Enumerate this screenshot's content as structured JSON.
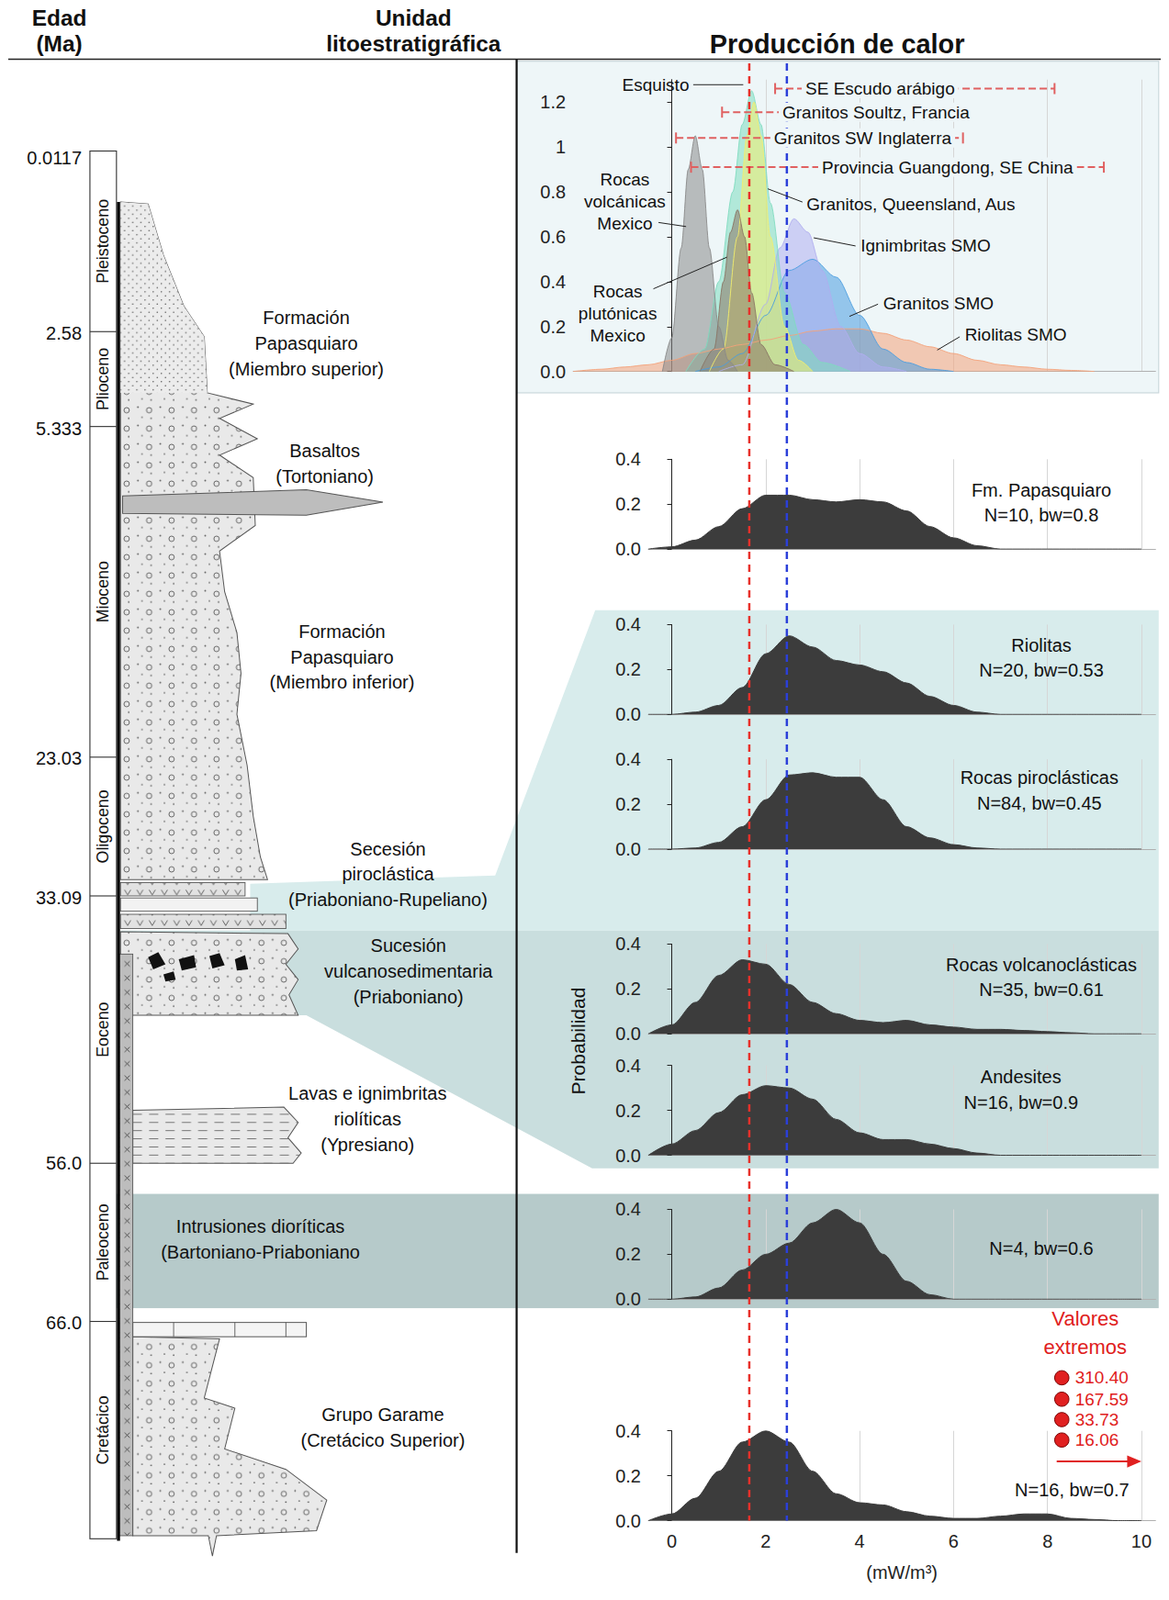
{
  "header": {
    "age_title": [
      "Edad",
      "(Ma)"
    ],
    "unit_title": [
      "Unidad",
      "litoestratigráfica"
    ],
    "heat_title": "Producción de calor"
  },
  "stratigraphy": {
    "ages": [
      0.0117,
      2.58,
      5.333,
      23.03,
      33.09,
      {
        "value": 56.0,
        "label": "56.0"
      },
      {
        "value": 66.0,
        "label": "66.0"
      }
    ],
    "epochs": [
      "Pleistoceno",
      "Plioceno",
      "Mioceno",
      "Oligoceno",
      "Eoceno",
      "Paleoceno",
      "Cretácico"
    ],
    "units": [
      [
        "Formación",
        "Papasquiaro",
        "(Miembro superior)"
      ],
      [
        "Basaltos",
        "(Tortoniano)"
      ],
      [
        "Formación",
        "Papasquiaro",
        "(Miembro inferior)"
      ],
      [
        "Secesión",
        "piroclástica",
        "(Priaboniano-Rupeliano)"
      ],
      [
        "Sucesión",
        "vulcanosedimentaria",
        "(Priaboniano)"
      ],
      [
        "Lavas e ignimbritas",
        "riolíticas",
        "(Ypresiano)"
      ],
      [
        "Intrusiones dioríticas",
        "(Bartoniano-Priaboniano"
      ],
      [
        "Grupo Garame",
        "(Cretácico Superior)"
      ]
    ]
  },
  "reference_lines": [
    {
      "value": 1.65,
      "color": "#e8302a",
      "line_style": "dashed"
    },
    {
      "value": 2.45,
      "color": "#2b3fd9",
      "line_style": "dashed"
    }
  ],
  "chart_data": [
    {
      "type": "area",
      "tick_labels": "y",
      "grid": true,
      "xlim": [
        -2.1,
        10.3
      ],
      "xticks": [
        0,
        2,
        4,
        6,
        8,
        10
      ],
      "ylim": [
        0,
        1.3
      ],
      "yticks": [
        {
          "value": 0,
          "label": "0.0"
        },
        0.2,
        0.4,
        0.6,
        0.8,
        1,
        1.2
      ],
      "series": [
        {
          "name": "Riolitas SMO",
          "color": "#f4a27a",
          "x": [
            -2.1,
            -1.5,
            -1,
            -0.5,
            0,
            0.5,
            1,
            1.5,
            2,
            2.5,
            3,
            3.5,
            4,
            4.5,
            5,
            5.5,
            6,
            6.5,
            7,
            7.5,
            8,
            8.5,
            9
          ],
          "values": [
            0,
            0.01,
            0.02,
            0.03,
            0.05,
            0.08,
            0.1,
            0.12,
            0.14,
            0.16,
            0.18,
            0.19,
            0.19,
            0.17,
            0.14,
            0.11,
            0.08,
            0.05,
            0.03,
            0.02,
            0.01,
            0.005,
            0
          ]
        },
        {
          "name": "Granitos SMO",
          "color": "#4a9de0",
          "x": [
            0.5,
            1,
            1.5,
            2,
            2.5,
            3,
            3.5,
            4,
            4.5,
            5,
            5.5,
            6
          ],
          "values": [
            0,
            0.02,
            0.08,
            0.25,
            0.45,
            0.5,
            0.42,
            0.25,
            0.1,
            0.04,
            0.01,
            0
          ]
        },
        {
          "name": "Ignimbritas SMO",
          "color": "#b0aef0",
          "x": [
            1,
            1.5,
            2,
            2.3,
            2.6,
            2.9,
            3.2,
            3.6,
            4,
            4.5,
            5
          ],
          "values": [
            0,
            0.03,
            0.3,
            0.55,
            0.68,
            0.62,
            0.45,
            0.2,
            0.08,
            0.02,
            0
          ]
        },
        {
          "name": "Esquisto",
          "color": "#7fdcc0",
          "x": [
            0.3,
            0.7,
            1.0,
            1.3,
            1.5,
            1.7,
            1.9,
            2.1,
            2.4,
            2.8,
            3.2,
            3.8
          ],
          "values": [
            0,
            0.1,
            0.4,
            0.8,
            1.1,
            1.25,
            1.1,
            0.75,
            0.35,
            0.12,
            0.04,
            0
          ]
        },
        {
          "name": "Granitos, Queensland, Aus",
          "color": "#f3ee6e",
          "x": [
            0.8,
            1.1,
            1.4,
            1.6,
            1.75,
            1.9,
            2.1,
            2.4,
            2.7,
            3.0
          ],
          "values": [
            0,
            0.1,
            0.6,
            1.05,
            1.2,
            1.05,
            0.6,
            0.2,
            0.05,
            0
          ]
        },
        {
          "name": "Rocas plutónicas Mexico",
          "color": "#8b7565",
          "x": [
            0.6,
            0.9,
            1.1,
            1.25,
            1.4,
            1.55,
            1.7,
            1.9,
            2.2,
            2.6
          ],
          "values": [
            0,
            0.1,
            0.4,
            0.62,
            0.72,
            0.6,
            0.35,
            0.12,
            0.03,
            0
          ]
        },
        {
          "name": "Rocas volcánicas Mexico",
          "color": "#8a8a8a",
          "x": [
            -0.2,
            0,
            0.2,
            0.35,
            0.5,
            0.65,
            0.8,
            1.0,
            1.2,
            1.4
          ],
          "values": [
            0,
            0.15,
            0.55,
            0.9,
            1.05,
            0.9,
            0.55,
            0.2,
            0.05,
            0
          ]
        }
      ],
      "ranges": [
        {
          "name": "SE Escudo arábigo",
          "min": 2.2,
          "max": 8.15,
          "y": 1.26,
          "color": "#e06060",
          "line_style": "dashed"
        },
        {
          "name": "Granitos Soultz, Francia",
          "min": 1.07,
          "max": 6.2,
          "y": 1.155,
          "color": "#e06060",
          "line_style": "dashed"
        },
        {
          "name": "Granitos SW Inglaterra",
          "min": 0.09,
          "max": 6.2,
          "y": 1.04,
          "color": "#e06060",
          "line_style": "dashed"
        },
        {
          "name": "Provincia Guangdong, SE China",
          "min": 0.41,
          "max": 9.2,
          "y": 0.91,
          "color": "#e06060",
          "line_style": "dashed"
        }
      ]
    },
    {
      "type": "area",
      "tick_labels": "y",
      "grid": true,
      "title": "Fm. Papasquiaro",
      "subtitle": "N=10, bw=0.8",
      "color": "#3c3c3c",
      "xlim": [
        -0.5,
        10.3
      ],
      "xticks": [
        0,
        2,
        4,
        6,
        8,
        10
      ],
      "ylim": [
        0,
        0.4
      ],
      "yticks": [
        {
          "value": 0,
          "label": "0.0"
        },
        0.2,
        0.4
      ],
      "x": [
        -0.5,
        0,
        0.5,
        1,
        1.5,
        2,
        2.5,
        3,
        3.5,
        4,
        4.5,
        5,
        5.5,
        6,
        6.5,
        7,
        7.5,
        8,
        8.5,
        9,
        9.5,
        10
      ],
      "values": [
        0,
        0.01,
        0.04,
        0.1,
        0.18,
        0.24,
        0.24,
        0.22,
        0.21,
        0.22,
        0.21,
        0.17,
        0.1,
        0.05,
        0.015,
        0,
        0,
        0,
        0,
        0,
        0,
        0
      ]
    },
    {
      "type": "area",
      "tick_labels": "y",
      "grid": true,
      "title": "Riolitas",
      "subtitle": "N=20, bw=0.53",
      "color": "#3c3c3c",
      "xlim": [
        -0.5,
        10.3
      ],
      "xticks": [
        0,
        2,
        4,
        6,
        8,
        10
      ],
      "ylim": [
        0,
        0.4
      ],
      "yticks": [
        {
          "value": 0,
          "label": "0.0"
        },
        0.2,
        0.4
      ],
      "x": [
        -0.5,
        0,
        0.5,
        1,
        1.5,
        2,
        2.5,
        3,
        3.5,
        4,
        4.5,
        5,
        5.5,
        6,
        6.5,
        7,
        7.5,
        8,
        8.5,
        9,
        9.5,
        10
      ],
      "values": [
        0,
        0,
        0.01,
        0.04,
        0.12,
        0.27,
        0.35,
        0.3,
        0.24,
        0.22,
        0.19,
        0.14,
        0.08,
        0.04,
        0.01,
        0,
        0,
        0,
        0,
        0,
        0,
        0
      ]
    },
    {
      "type": "area",
      "tick_labels": "y",
      "grid": true,
      "title": "Rocas piroclásticas",
      "subtitle": "N=84, bw=0.45",
      "color": "#3c3c3c",
      "xlim": [
        -0.5,
        10.3
      ],
      "xticks": [
        0,
        2,
        4,
        6,
        8,
        10
      ],
      "ylim": [
        0,
        0.4
      ],
      "yticks": [
        {
          "value": 0,
          "label": "0.0"
        },
        0.2,
        0.4
      ],
      "x": [
        -0.5,
        0,
        0.5,
        1,
        1.5,
        2,
        2.5,
        3,
        3.5,
        4,
        4.5,
        5,
        5.5,
        6,
        6.5,
        7,
        7.5,
        8,
        8.5,
        9,
        9.5,
        10
      ],
      "values": [
        0,
        0,
        0.005,
        0.03,
        0.1,
        0.22,
        0.33,
        0.34,
        0.32,
        0.32,
        0.22,
        0.1,
        0.05,
        0.02,
        0.005,
        0,
        0,
        0,
        0,
        0,
        0,
        0
      ]
    },
    {
      "type": "area",
      "tick_labels": "y",
      "grid": true,
      "title": "Rocas volcanoclásticas",
      "subtitle": "N=35, bw=0.61",
      "color": "#3c3c3c",
      "ylabel": "Probabilidad",
      "xlim": [
        -0.5,
        10.3
      ],
      "xticks": [
        0,
        2,
        4,
        6,
        8,
        10
      ],
      "ylim": [
        0,
        0.4
      ],
      "yticks": [
        {
          "value": 0,
          "label": "0.0"
        },
        0.2,
        0.4
      ],
      "x": [
        -0.5,
        0,
        0.5,
        1,
        1.5,
        2,
        2.5,
        3,
        3.5,
        4,
        4.5,
        5,
        5.5,
        6,
        6.5,
        7,
        7.5,
        8,
        8.5,
        9,
        9.5,
        10
      ],
      "values": [
        0,
        0.04,
        0.14,
        0.26,
        0.33,
        0.31,
        0.22,
        0.14,
        0.09,
        0.06,
        0.05,
        0.06,
        0.04,
        0.03,
        0.02,
        0.02,
        0.015,
        0.01,
        0.005,
        0,
        0,
        0
      ]
    },
    {
      "type": "area",
      "tick_labels": "y",
      "grid": true,
      "title": "Andesites",
      "subtitle": "N=16, bw=0.9",
      "color": "#3c3c3c",
      "xlim": [
        -0.5,
        10.3
      ],
      "xticks": [
        0,
        2,
        4,
        6,
        8,
        10
      ],
      "ylim": [
        0,
        0.4
      ],
      "yticks": [
        {
          "value": 0,
          "label": "0.0"
        },
        0.2,
        0.4
      ],
      "x": [
        -0.5,
        0,
        0.5,
        1,
        1.5,
        2,
        2.5,
        3,
        3.5,
        4,
        4.5,
        5,
        5.5,
        6,
        6.5,
        7,
        7.5,
        8,
        8.5,
        9,
        9.5,
        10
      ],
      "values": [
        0,
        0.05,
        0.11,
        0.19,
        0.27,
        0.31,
        0.3,
        0.25,
        0.16,
        0.1,
        0.07,
        0.07,
        0.05,
        0.03,
        0.01,
        0,
        0,
        0,
        0,
        0,
        0,
        0
      ]
    },
    {
      "type": "area",
      "tick_labels": "y",
      "grid": true,
      "subtitle": "N=4, bw=0.6",
      "color": "#3c3c3c",
      "xlim": [
        -0.5,
        10.3
      ],
      "xticks": [
        0,
        2,
        4,
        6,
        8,
        10
      ],
      "ylim": [
        0,
        0.4
      ],
      "yticks": [
        {
          "value": 0,
          "label": "0.0"
        },
        0.2,
        0.4
      ],
      "x": [
        -0.5,
        0,
        0.5,
        1,
        1.5,
        2,
        2.5,
        3,
        3.5,
        4,
        4.5,
        5,
        5.5,
        6,
        6.5,
        7,
        7.5,
        8,
        8.5,
        9,
        9.5,
        10
      ],
      "values": [
        0,
        0,
        0.01,
        0.05,
        0.13,
        0.2,
        0.25,
        0.34,
        0.4,
        0.34,
        0.2,
        0.08,
        0.02,
        0,
        0,
        0,
        0,
        0,
        0,
        0,
        0,
        0
      ]
    },
    {
      "type": "area",
      "grid": true,
      "subtitle": "N=16, bw=0.7",
      "color": "#3c3c3c",
      "xlabel": "(mW/m³)",
      "xlim": [
        -0.5,
        10.3
      ],
      "xticks": [
        0,
        2,
        4,
        6,
        8,
        10
      ],
      "ylim": [
        0,
        0.4
      ],
      "yticks": [
        {
          "value": 0,
          "label": "0.0"
        },
        0.2,
        0.4
      ],
      "x": [
        -0.5,
        0,
        0.5,
        1,
        1.5,
        2,
        2.5,
        3,
        3.5,
        4,
        4.5,
        5,
        5.5,
        6,
        6.5,
        7,
        7.5,
        8,
        8.5,
        9,
        9.5,
        10
      ],
      "values": [
        0,
        0.03,
        0.1,
        0.22,
        0.35,
        0.4,
        0.35,
        0.22,
        0.12,
        0.08,
        0.07,
        0.04,
        0.02,
        0.01,
        0.01,
        0.02,
        0.03,
        0.03,
        0.01,
        0.005,
        0,
        0
      ],
      "extreme_values": {
        "title": "Valores extremos",
        "color": "#e02020",
        "values": [
          310.4,
          167.59,
          33.73,
          16.06
        ],
        "value_labels": [
          "310.40",
          "167.59",
          "33.73",
          "16.06"
        ]
      }
    }
  ]
}
